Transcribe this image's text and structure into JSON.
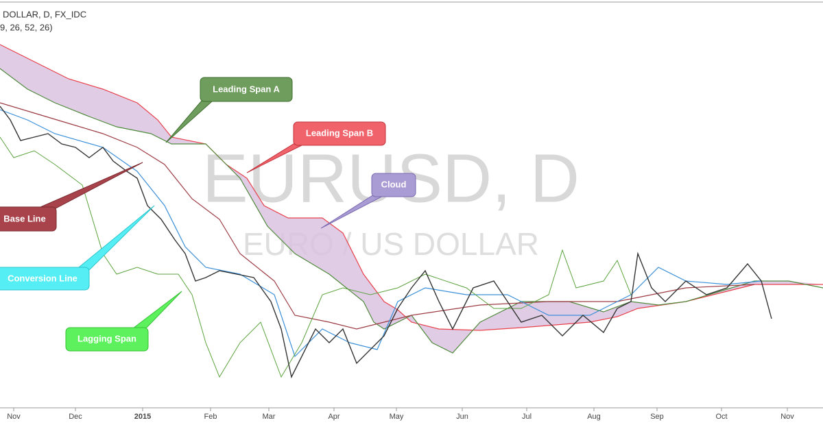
{
  "chart_data": {
    "type": "ichimoku",
    "header": "DOLLAR, D, FX_IDC",
    "subheader": "9, 26, 52, 26)",
    "watermark": "EURUSD, D",
    "watermark_subtitle": "EURO / US DOLLAR",
    "categories": [
      "Nov",
      "Dec",
      "2015",
      "Feb",
      "Mar",
      "Apr",
      "May",
      "Jun",
      "Jul",
      "Aug",
      "Sep",
      "Oct",
      "Nov"
    ],
    "annotations": [
      "Leading Span A",
      "Leading Span B",
      "Cloud",
      "Base Line",
      "Conversion Line",
      "Lagging Span"
    ]
  }
}
